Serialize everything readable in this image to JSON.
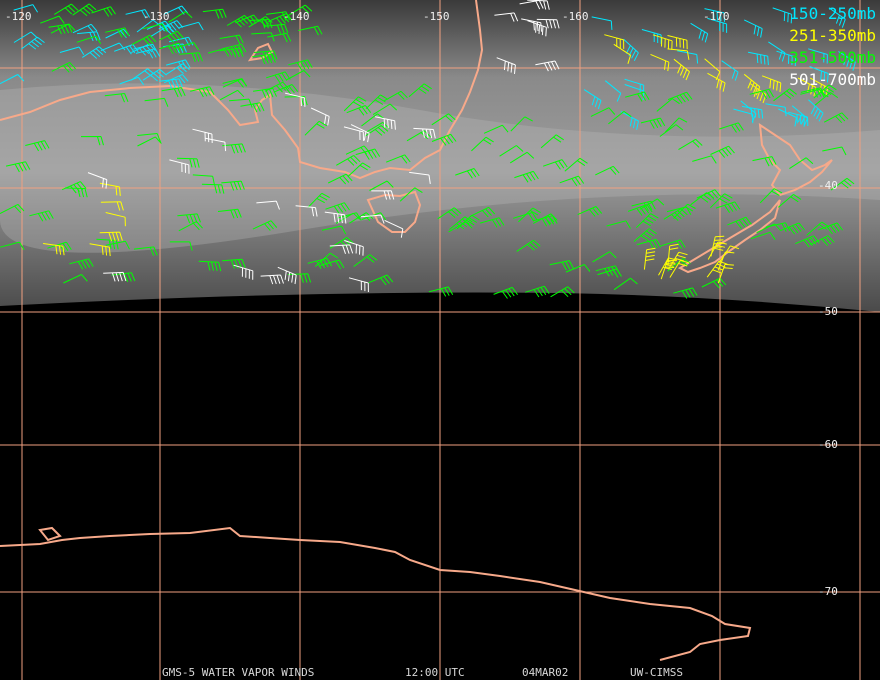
{
  "map": {
    "longitude_labels": [
      "-120",
      "-130",
      "-140",
      "-150",
      "-160",
      "-170"
    ],
    "latitude_labels": [
      "-40",
      "-50",
      "-60",
      "-70"
    ],
    "legend": [
      "150-250mb",
      "251-350mb",
      "351-500mb",
      "501-700mb"
    ],
    "footer": {
      "product": "GMS-5 WATER VAPOR WINDS",
      "time": "12:00 UTC",
      "date": "04MAR02",
      "source": "UW-CIMSS"
    }
  }
}
